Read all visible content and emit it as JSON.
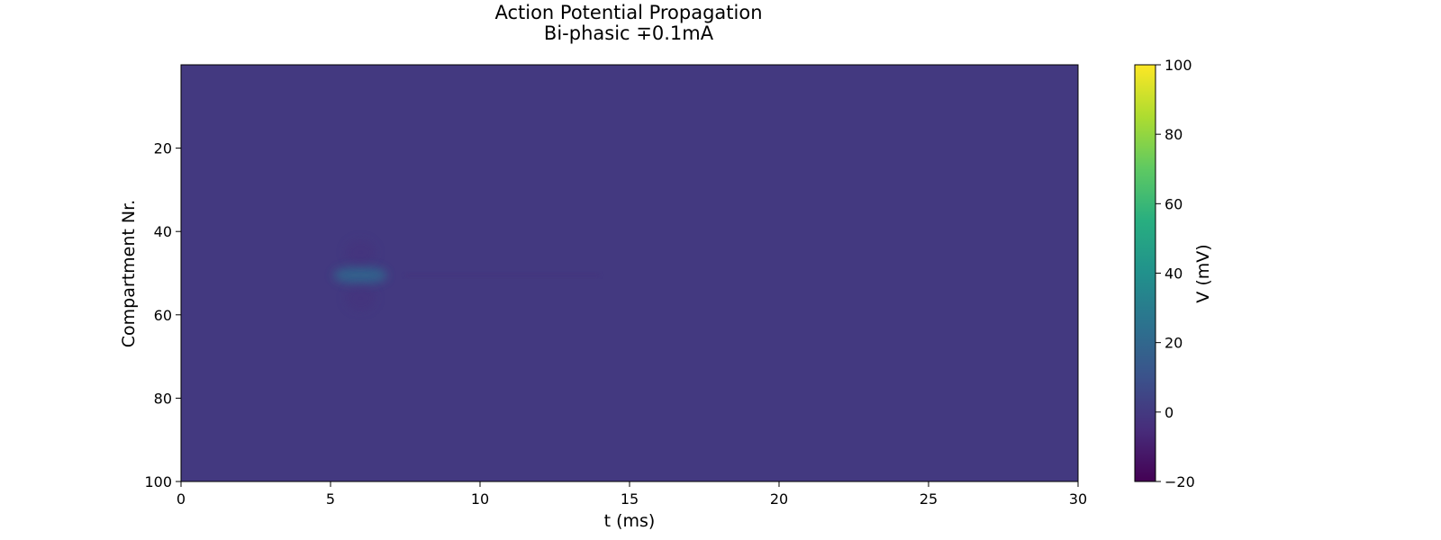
{
  "chart_data": {
    "type": "heatmap",
    "title": "Action Potential Propagation",
    "subtitle": "Bi-phasic ∓0.1mA",
    "xlabel": "t (ms)",
    "ylabel": "Compartment Nr.",
    "xlim": [
      0,
      30
    ],
    "ylim": [
      100,
      0
    ],
    "y_inverted": true,
    "xticks": [
      0,
      5,
      10,
      15,
      20,
      25,
      30
    ],
    "yticks": [
      20,
      40,
      60,
      80,
      100
    ],
    "colormap": "viridis",
    "background_value_mV": 0,
    "features": [
      {
        "kind": "depolarization",
        "t_ms": 6.0,
        "compartment": 50.5,
        "peak_mV": 18
      },
      {
        "kind": "hyperpolarization",
        "t_ms": 6.0,
        "compartment": 45,
        "peak_mV": -3
      },
      {
        "kind": "hyperpolarization",
        "t_ms": 6.0,
        "compartment": 56,
        "peak_mV": -3
      },
      {
        "kind": "trailing",
        "t_start_ms": 7.5,
        "t_end_ms": 14,
        "compartment": 50.5,
        "peak_mV": -2
      }
    ],
    "colorbar": {
      "label": "V (mV)",
      "min": -20,
      "max": 100,
      "ticks": [
        -20,
        0,
        20,
        40,
        60,
        80,
        100
      ]
    }
  }
}
